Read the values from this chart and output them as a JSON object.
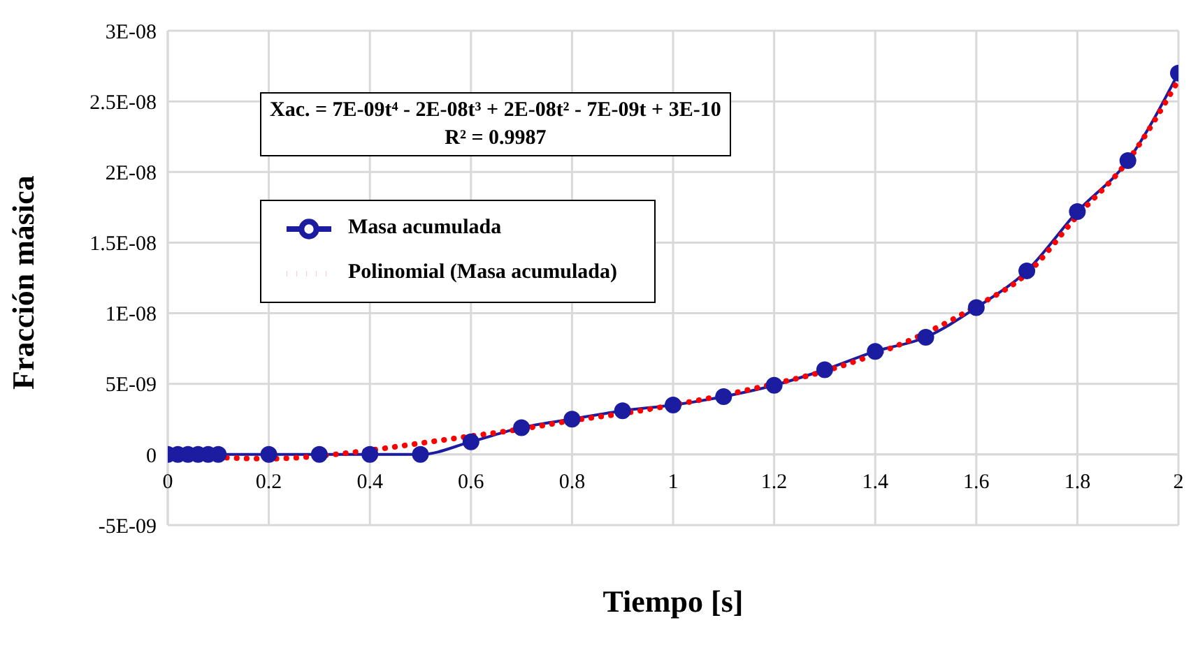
{
  "chart_data": {
    "type": "line",
    "xlabel": "Tiempo [s]",
    "ylabel": "Fracción másica",
    "annotations": [
      "Xac. = 7E-09t⁴ - 2E-08t³ + 2E-08t² - 7E-09t + 3E-10",
      "R² = 0.9987"
    ],
    "series": [
      {
        "name": "Masa acumulada",
        "color": "#1c1ca0",
        "marker": "circle",
        "line_style": "solid",
        "x": [
          0,
          0.02,
          0.04,
          0.06,
          0.08,
          0.1,
          0.2,
          0.3,
          0.4,
          0.5,
          0.6,
          0.7,
          0.8,
          0.9,
          1.0,
          1.1,
          1.2,
          1.3,
          1.4,
          1.5,
          1.6,
          1.7,
          1.8,
          1.9,
          2.0
        ],
        "values": [
          0,
          0,
          0,
          0,
          0,
          0,
          0,
          0,
          0,
          0,
          9e-10,
          1.9e-09,
          2.5e-09,
          3.1e-09,
          3.5e-09,
          4.1e-09,
          4.9e-09,
          6e-09,
          7.3e-09,
          8.3e-09,
          1.04e-08,
          1.3e-08,
          1.72e-08,
          2.08e-08,
          2.7e-08
        ]
      },
      {
        "name": "Polinomial (Masa acumulada)",
        "color": "#ff0000",
        "marker": "none",
        "line_style": "dotted",
        "x": [
          0,
          0.1,
          0.2,
          0.3,
          0.4,
          0.5,
          0.6,
          0.7,
          0.8,
          0.9,
          1.0,
          1.1,
          1.2,
          1.3,
          1.4,
          1.5,
          1.6,
          1.7,
          1.8,
          1.9,
          2.0
        ],
        "values": [
          3e-10,
          -2e-10,
          -3e-10,
          -1e-10,
          3e-10,
          8e-10,
          1.3e-09,
          1.8e-09,
          2.4e-09,
          2.9e-09,
          3.5e-09,
          4.2e-09,
          5e-09,
          5.9e-09,
          7.1e-09,
          8.6e-09,
          1.05e-08,
          1.28e-08,
          1.69e-08,
          2.08e-08,
          2.65e-08
        ]
      }
    ],
    "xlim": [
      0,
      2
    ],
    "xticks": [
      0,
      0.2,
      0.4,
      0.6,
      0.8,
      1,
      1.2,
      1.4,
      1.6,
      1.8,
      2
    ],
    "ylim": [
      -5e-09,
      3e-08
    ],
    "yticks": [
      {
        "value": -5e-09,
        "label": "-5E-09"
      },
      {
        "value": 0,
        "label": "0"
      },
      {
        "value": 5e-09,
        "label": "5E-09"
      },
      {
        "value": 1e-08,
        "label": "1E-08"
      },
      {
        "value": 1.5e-08,
        "label": "1.5E-08"
      },
      {
        "value": 2e-08,
        "label": "2E-08"
      },
      {
        "value": 2.5e-08,
        "label": "2.5E-08"
      },
      {
        "value": 3e-08,
        "label": "3E-08"
      }
    ],
    "grid": true,
    "legend": "left"
  }
}
